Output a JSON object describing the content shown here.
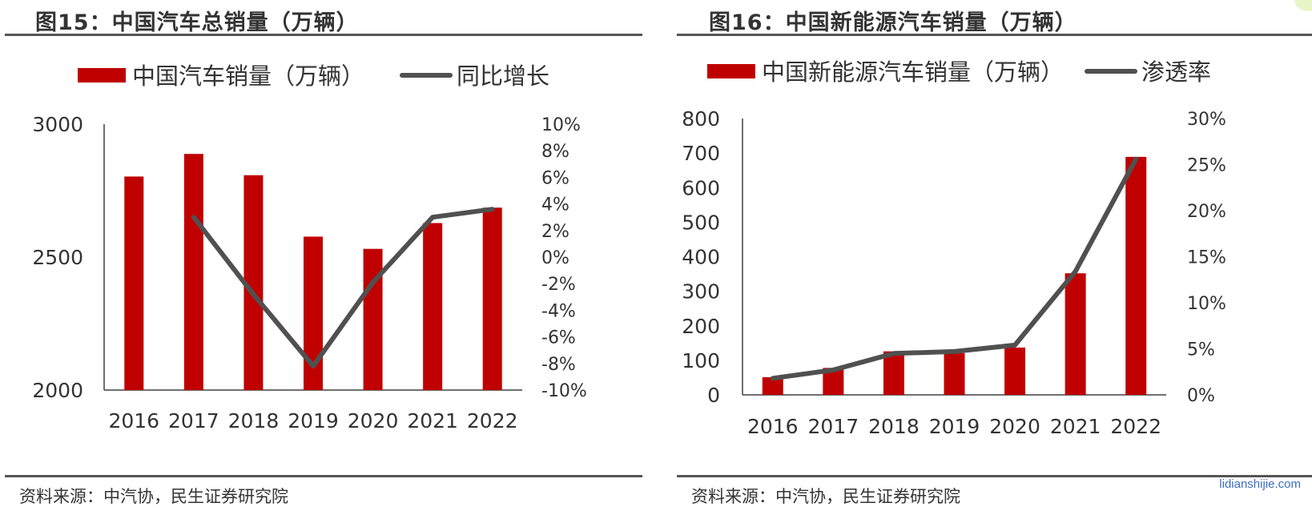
{
  "charts": {
    "left": {
      "figure_title": "图15：中国汽车总销量（万辆）",
      "source": "资料来源：中汽协，民生证券研究院"
    },
    "right": {
      "figure_title": "图16：中国新能源汽车销量（万辆）",
      "source": "资料来源：中汽协，民生证券研究院"
    }
  },
  "watermark": "lidianshijie.com",
  "colors": {
    "bar": "#c00000",
    "line": "#505050",
    "axis": "#404040"
  },
  "chart_data": [
    {
      "type": "bar+line",
      "title": "图15：中国汽车总销量（万辆）",
      "categories": [
        "2016",
        "2017",
        "2018",
        "2019",
        "2020",
        "2021",
        "2022"
      ],
      "series": [
        {
          "name": "中国汽车销量（万辆）",
          "kind": "bar",
          "axis": "left",
          "values": [
            2803,
            2888,
            2808,
            2577,
            2531,
            2628,
            2686
          ]
        },
        {
          "name": "同比增长",
          "kind": "line",
          "axis": "right",
          "values": [
            null,
            3.0,
            -2.8,
            -8.2,
            -1.9,
            3.0,
            3.6
          ]
        }
      ],
      "y_left": {
        "range": [
          2000,
          3000
        ],
        "ticks": [
          2000,
          2500,
          3000
        ],
        "tick_labels": [
          "2000",
          "2500",
          "3000"
        ]
      },
      "y_right": {
        "range": [
          -10,
          10
        ],
        "ticks": [
          -10,
          -8,
          -6,
          -4,
          -2,
          0,
          2,
          4,
          6,
          8,
          10
        ],
        "tick_labels": [
          "-10%",
          "-8%",
          "-6%",
          "-4%",
          "-2%",
          "0%",
          "2%",
          "4%",
          "6%",
          "8%",
          "10%"
        ]
      },
      "legend": "top",
      "grid": false
    },
    {
      "type": "bar+line",
      "title": "图16：中国新能源汽车销量（万辆）",
      "categories": [
        "2016",
        "2017",
        "2018",
        "2019",
        "2020",
        "2021",
        "2022"
      ],
      "series": [
        {
          "name": "中国新能源汽车销量（万辆）",
          "kind": "bar",
          "axis": "left",
          "values": [
            51,
            78,
            126,
            121,
            137,
            352,
            689
          ]
        },
        {
          "name": "渗透率",
          "kind": "line",
          "axis": "right",
          "values": [
            1.8,
            2.7,
            4.5,
            4.7,
            5.4,
            13.4,
            25.6
          ]
        }
      ],
      "y_left": {
        "range": [
          0,
          800
        ],
        "ticks": [
          0,
          100,
          200,
          300,
          400,
          500,
          600,
          700,
          800
        ],
        "tick_labels": [
          "0",
          "100",
          "200",
          "300",
          "400",
          "500",
          "600",
          "700",
          "800"
        ]
      },
      "y_right": {
        "range": [
          0,
          30
        ],
        "ticks": [
          0,
          5,
          10,
          15,
          20,
          25,
          30
        ],
        "tick_labels": [
          "0%",
          "5%",
          "10%",
          "15%",
          "20%",
          "25%",
          "30%"
        ]
      },
      "legend": "top",
      "grid": false
    }
  ]
}
